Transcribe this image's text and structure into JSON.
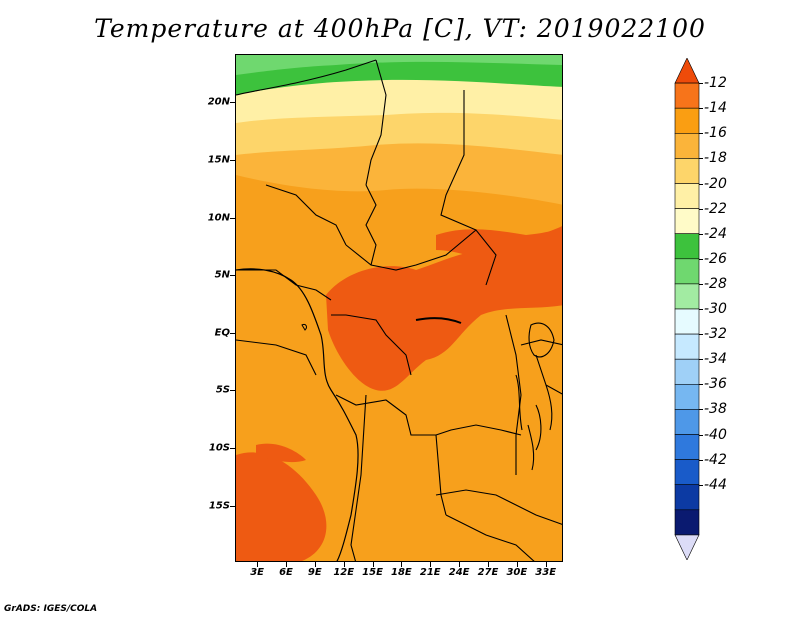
{
  "title": "Temperature at 400hPa [C], VT: 2019022100",
  "footer": "GrADS: IGES/COLA",
  "map": {
    "lat_labels": [
      {
        "value": 20,
        "label": "20N"
      },
      {
        "value": 15,
        "label": "15N"
      },
      {
        "value": 10,
        "label": "10N"
      },
      {
        "value": 5,
        "label": "5N"
      },
      {
        "value": 0,
        "label": "EQ"
      },
      {
        "value": -5,
        "label": "5S"
      },
      {
        "value": -10,
        "label": "10S"
      },
      {
        "value": -15,
        "label": "15S"
      }
    ],
    "lon_labels": [
      {
        "value": 3,
        "label": "3E"
      },
      {
        "value": 6,
        "label": "6E"
      },
      {
        "value": 9,
        "label": "9E"
      },
      {
        "value": 12,
        "label": "12E"
      },
      {
        "value": 15,
        "label": "15E"
      },
      {
        "value": 18,
        "label": "18E"
      },
      {
        "value": 21,
        "label": "21E"
      },
      {
        "value": 24,
        "label": "24E"
      },
      {
        "value": 27,
        "label": "27E"
      },
      {
        "value": 30,
        "label": "30E"
      },
      {
        "value": 33,
        "label": "33E"
      }
    ]
  },
  "colorbar": {
    "levels": [
      "-12",
      "-14",
      "-16",
      "-18",
      "-20",
      "-22",
      "-24",
      "-26",
      "-28",
      "-30",
      "-32",
      "-34",
      "-36",
      "-38",
      "-40",
      "-42",
      "-44"
    ],
    "colors": [
      "#ee4b0a",
      "#f7741a",
      "#fa9e12",
      "#fbb43a",
      "#fdd56a",
      "#fff0a6",
      "#fffbc8",
      "#3dc23d",
      "#6fd86f",
      "#a2eba2",
      "#e6fbff",
      "#c6e9ff",
      "#9fd0f7",
      "#76b7f1",
      "#4e98e8",
      "#2f79dd",
      "#195bc9",
      "#0c3aa3",
      "#0a1a70",
      "#dcdcf7"
    ]
  }
}
